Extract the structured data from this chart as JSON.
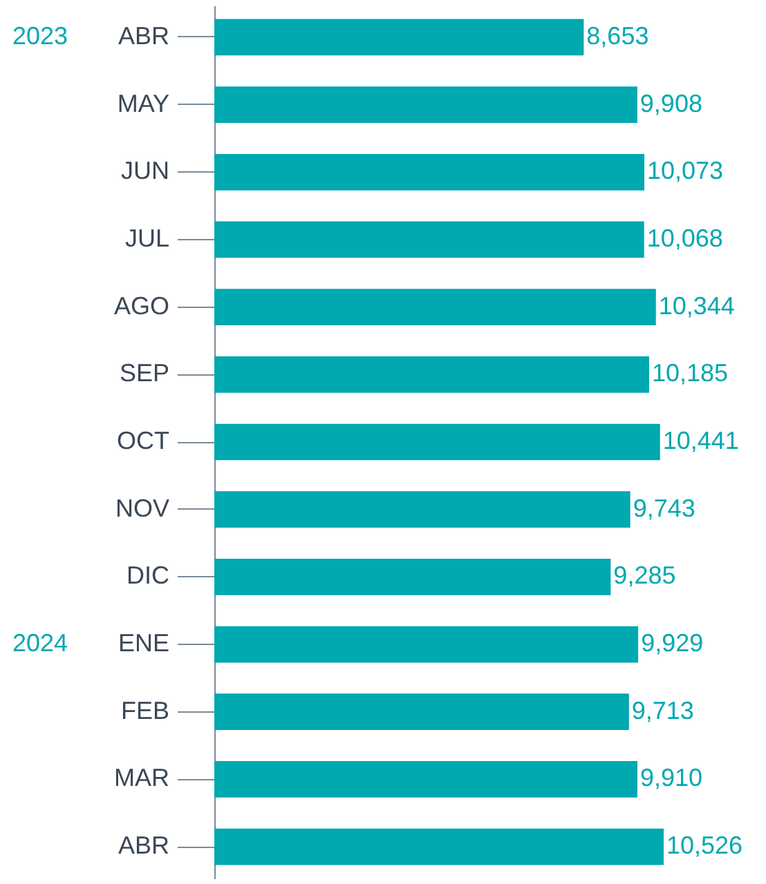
{
  "chart_data": {
    "type": "bar",
    "orientation": "horizontal",
    "categories": [
      "ABR",
      "MAY",
      "JUN",
      "JUL",
      "AGO",
      "SEP",
      "OCT",
      "NOV",
      "DIC",
      "ENE",
      "FEB",
      "MAR",
      "ABR"
    ],
    "values": [
      8653,
      9908,
      10073,
      10068,
      10344,
      10185,
      10441,
      9743,
      9285,
      9929,
      9713,
      9910,
      10526
    ],
    "value_labels": [
      "8,653",
      "9,908",
      "10,073",
      "10,068",
      "10,344",
      "10,185",
      "10,441",
      "9,743",
      "9,285",
      "9,929",
      "9,713",
      "9,910",
      "10,526"
    ],
    "color": "#00a8b0",
    "tick_labels": "y",
    "annotations": [
      "2023",
      "2024"
    ]
  }
}
